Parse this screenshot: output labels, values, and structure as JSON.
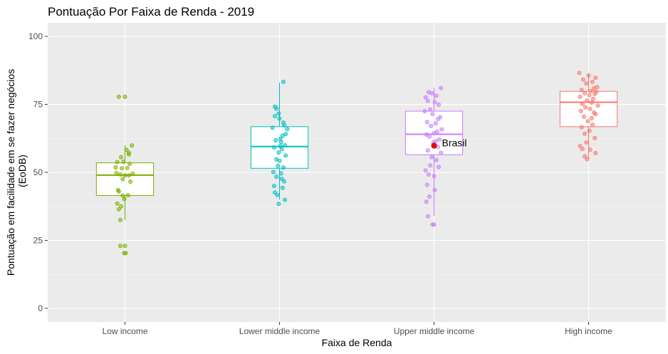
{
  "chart_data": {
    "type": "box",
    "title": "Pontuação Por Faixa de Renda - 2019",
    "xlabel": "Faixa de Renda",
    "ylabel_lines": [
      "Pontuação em facilidade em se fazer negócios",
      "(EoDB)"
    ],
    "ylim": [
      -5,
      105
    ],
    "yticks": [
      0,
      25,
      50,
      75,
      100
    ],
    "ytick_labels": [
      "0",
      "25",
      "50",
      "75",
      "100"
    ],
    "grid": true,
    "legend": "none",
    "categories": [
      "Low income",
      "Lower middle income",
      "Upper middle income",
      "High income"
    ],
    "series": [
      {
        "category": "Low income",
        "color": "#7CAE00",
        "box": {
          "whisker_low": 32.5,
          "q1": 41.5,
          "median": 49,
          "q3": 53.5,
          "whisker_high": 60
        },
        "points": [
          [
            -0.08,
            77.8
          ],
          [
            0.0,
            77.8
          ],
          [
            0.09,
            59.9
          ],
          [
            0.02,
            58.3
          ],
          [
            0.05,
            57.2
          ],
          [
            0.05,
            56.6
          ],
          [
            -0.05,
            55.6
          ],
          [
            -0.02,
            53.9
          ],
          [
            -0.1,
            53.8
          ],
          [
            0.06,
            53.1
          ],
          [
            -0.12,
            51.8
          ],
          [
            -0.04,
            51.5
          ],
          [
            0.03,
            51.6
          ],
          [
            -0.11,
            49.7
          ],
          [
            0.1,
            49.5
          ],
          [
            -0.06,
            49.2
          ],
          [
            0.0,
            48.9
          ],
          [
            0.05,
            48.9
          ],
          [
            -0.03,
            47.5
          ],
          [
            0.07,
            46.6
          ],
          [
            -0.09,
            43.5
          ],
          [
            -0.08,
            43.0
          ],
          [
            0.04,
            41.6
          ],
          [
            -0.03,
            41.5
          ],
          [
            -0.01,
            40.2
          ],
          [
            -0.1,
            38.5
          ],
          [
            -0.05,
            37.5
          ],
          [
            -0.08,
            36.4
          ],
          [
            -0.06,
            32.5
          ],
          [
            -0.06,
            23.0
          ],
          [
            0.0,
            23.0
          ],
          [
            -0.01,
            20.3
          ],
          [
            0.01,
            20.3
          ]
        ]
      },
      {
        "category": "Lower middle income",
        "color": "#00BFC4",
        "box": {
          "whisker_low": 40,
          "q1": 51.5,
          "median": 59.5,
          "q3": 66.8,
          "whisker_high": 83
        },
        "points": [
          [
            0.05,
            83.3
          ],
          [
            -0.06,
            74.2
          ],
          [
            -0.04,
            73.4
          ],
          [
            -0.01,
            71.6
          ],
          [
            -0.06,
            70.7
          ],
          [
            0.0,
            69.8
          ],
          [
            0.05,
            68.3
          ],
          [
            0.06,
            67.3
          ],
          [
            -0.09,
            66.4
          ],
          [
            0.1,
            65.9
          ],
          [
            0.08,
            64.1
          ],
          [
            0.04,
            63.5
          ],
          [
            0.01,
            62.3
          ],
          [
            -0.05,
            61.8
          ],
          [
            0.02,
            61.2
          ],
          [
            0.07,
            60.0
          ],
          [
            0.01,
            59.7
          ],
          [
            -0.07,
            59.2
          ],
          [
            0.03,
            58.5
          ],
          [
            -0.01,
            57.3
          ],
          [
            0.08,
            56.2
          ],
          [
            -0.04,
            54.8
          ],
          [
            0.0,
            54.3
          ],
          [
            -0.02,
            52.4
          ],
          [
            0.05,
            51.8
          ],
          [
            -0.08,
            50.1
          ],
          [
            0.02,
            49.6
          ],
          [
            -0.04,
            48.4
          ],
          [
            0.03,
            47.6
          ],
          [
            0.06,
            46.7
          ],
          [
            -0.07,
            45.0
          ],
          [
            0.04,
            44.3
          ],
          [
            -0.06,
            42.6
          ],
          [
            -0.03,
            41.7
          ],
          [
            0.07,
            39.9
          ],
          [
            -0.01,
            38.4
          ]
        ]
      },
      {
        "category": "Upper middle income",
        "color": "#C77CFF",
        "box": {
          "whisker_low": 34,
          "q1": 56.5,
          "median": 64,
          "q3": 72.5,
          "whisker_high": 81
        },
        "points": [
          [
            0.09,
            81.0
          ],
          [
            -0.07,
            79.5
          ],
          [
            -0.03,
            79.1
          ],
          [
            0.03,
            78.2
          ],
          [
            -0.11,
            77.6
          ],
          [
            -0.08,
            76.3
          ],
          [
            0.01,
            75.8
          ],
          [
            0.06,
            74.9
          ],
          [
            -0.05,
            73.1
          ],
          [
            -0.12,
            72.5
          ],
          [
            -0.02,
            71.4
          ],
          [
            0.08,
            70.3
          ],
          [
            0.05,
            69.6
          ],
          [
            -0.09,
            68.5
          ],
          [
            0.02,
            68.0
          ],
          [
            -0.04,
            67.1
          ],
          [
            0.1,
            65.8
          ],
          [
            0.04,
            65.0
          ],
          [
            0.0,
            64.4
          ],
          [
            -0.1,
            63.9
          ],
          [
            -0.06,
            63.2
          ],
          [
            0.07,
            62.1
          ],
          [
            0.02,
            61.5
          ],
          [
            -0.01,
            60.9
          ],
          [
            0.05,
            59.4
          ],
          [
            -0.08,
            58.1
          ],
          [
            0.09,
            57.2
          ],
          [
            -0.03,
            55.6
          ],
          [
            0.03,
            54.5
          ],
          [
            -0.05,
            52.6
          ],
          [
            0.06,
            52.0
          ],
          [
            -0.11,
            50.7
          ],
          [
            -0.07,
            49.2
          ],
          [
            0.0,
            48.6
          ],
          [
            -0.09,
            45.4
          ],
          [
            0.01,
            43.5
          ],
          [
            -0.06,
            41.1
          ],
          [
            -0.1,
            39.2
          ],
          [
            -0.08,
            33.9
          ],
          [
            -0.02,
            30.8
          ],
          [
            0.0,
            30.8
          ]
        ]
      },
      {
        "category": "High income",
        "color": "#F8766D",
        "box": {
          "whisker_low": 55,
          "q1": 66.8,
          "median": 75.8,
          "q3": 79.8,
          "whisker_high": 86.5
        },
        "points": [
          [
            -0.12,
            86.6
          ],
          [
            0.0,
            85.6
          ],
          [
            0.09,
            84.8
          ],
          [
            -0.07,
            84.1
          ],
          [
            0.05,
            83.3
          ],
          [
            -0.03,
            82.7
          ],
          [
            0.11,
            81.4
          ],
          [
            0.07,
            80.9
          ],
          [
            -0.09,
            80.3
          ],
          [
            0.03,
            79.9
          ],
          [
            0.1,
            79.6
          ],
          [
            -0.05,
            79.1
          ],
          [
            0.08,
            78.8
          ],
          [
            0.01,
            78.4
          ],
          [
            -0.11,
            77.8
          ],
          [
            0.06,
            77.0
          ],
          [
            -0.02,
            76.4
          ],
          [
            0.04,
            75.7
          ],
          [
            -0.08,
            75.1
          ],
          [
            0.12,
            74.6
          ],
          [
            -0.04,
            73.9
          ],
          [
            0.02,
            73.3
          ],
          [
            -0.1,
            72.6
          ],
          [
            0.07,
            72.0
          ],
          [
            0.09,
            71.4
          ],
          [
            -0.06,
            70.5
          ],
          [
            0.04,
            69.9
          ],
          [
            -0.01,
            68.8
          ],
          [
            0.05,
            67.5
          ],
          [
            -0.09,
            66.6
          ],
          [
            0.01,
            65.3
          ],
          [
            -0.05,
            64.2
          ],
          [
            0.08,
            62.6
          ],
          [
            -0.03,
            61.0
          ],
          [
            -0.11,
            59.7
          ],
          [
            -0.08,
            58.6
          ],
          [
            0.02,
            58.3
          ],
          [
            0.09,
            57.1
          ],
          [
            -0.05,
            55.9
          ],
          [
            -0.02,
            54.8
          ]
        ]
      }
    ],
    "highlight": {
      "label": "Brasil",
      "category": "Upper middle income",
      "offset": 0.0,
      "value": 59.8,
      "color": "#FF0000"
    }
  }
}
